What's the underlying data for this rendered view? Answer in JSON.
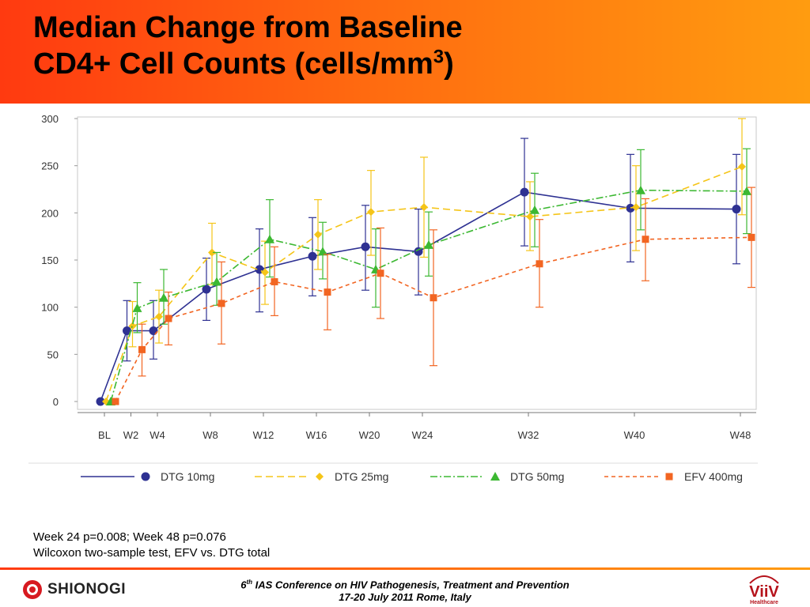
{
  "title": {
    "line1": "Median Change from Baseline",
    "line2_main": "CD4+ Cell Counts (cells/mm",
    "line2_sup": "3",
    "line2_end": ")"
  },
  "footnote": {
    "line1": "Week 24 p=0.008; Week 48 p=0.076",
    "line2": "Wilcoxon two-sample test, EFV vs. DTG total"
  },
  "conference": {
    "line1_num": "6",
    "line1_sup": "th",
    "line1_rest": " IAS Conference on HIV Pathogenesis, Treatment and Prevention",
    "line2": "17-20 July 2011 Rome, Italy"
  },
  "logos": {
    "shionogi": "SHIONOGI",
    "viiv": "ViiV",
    "viiv_sub": "Healthcare"
  },
  "chart_data": {
    "type": "line",
    "categories": [
      "BL",
      "W2",
      "W4",
      "W8",
      "W12",
      "W16",
      "W20",
      "W24",
      "W32",
      "W40",
      "W48"
    ],
    "x_weeks": [
      0,
      2,
      4,
      8,
      12,
      16,
      20,
      24,
      32,
      40,
      48
    ],
    "ylim": [
      0,
      300
    ],
    "yticks": [
      0,
      50,
      100,
      150,
      200,
      250,
      300
    ],
    "grid": false,
    "legend_position": "bottom",
    "series": [
      {
        "name": "DTG 10mg",
        "color": "#2e3192",
        "marker": "circle",
        "dash": "solid",
        "values": [
          0,
          75,
          75,
          119,
          140,
          154,
          164,
          159,
          222,
          205,
          204
        ],
        "err_low": [
          0,
          43,
          45,
          86,
          95,
          112,
          118,
          113,
          165,
          148,
          146
        ],
        "err_high": [
          0,
          107,
          107,
          152,
          183,
          195,
          208,
          204,
          279,
          262,
          262
        ]
      },
      {
        "name": "DTG 25mg",
        "color": "#f5c518",
        "marker": "diamond",
        "dash": "long-dash",
        "values": [
          0,
          80,
          90,
          158,
          137,
          177,
          201,
          206,
          196,
          206,
          249
        ],
        "err_low": [
          0,
          58,
          62,
          124,
          103,
          140,
          155,
          153,
          160,
          160,
          198
        ],
        "err_high": [
          0,
          106,
          118,
          189,
          170,
          214,
          245,
          259,
          233,
          250,
          300
        ]
      },
      {
        "name": "DTG 50mg",
        "color": "#3cb832",
        "marker": "triangle",
        "dash": "dash-dot",
        "values": [
          0,
          99,
          110,
          127,
          172,
          159,
          140,
          166,
          203,
          224,
          223
        ],
        "err_low": [
          0,
          73,
          82,
          102,
          132,
          130,
          100,
          133,
          164,
          182,
          178
        ],
        "err_high": [
          0,
          126,
          140,
          158,
          214,
          190,
          183,
          201,
          242,
          267,
          268
        ]
      },
      {
        "name": "EFV 400mg",
        "color": "#f26522",
        "marker": "square",
        "dash": "short-dash",
        "values": [
          0,
          55,
          88,
          104,
          127,
          116,
          136,
          110,
          146,
          172,
          174
        ],
        "err_low": [
          0,
          27,
          60,
          61,
          91,
          76,
          88,
          38,
          100,
          128,
          121
        ],
        "err_high": [
          0,
          82,
          116,
          148,
          164,
          156,
          184,
          182,
          193,
          215,
          227
        ]
      }
    ]
  }
}
